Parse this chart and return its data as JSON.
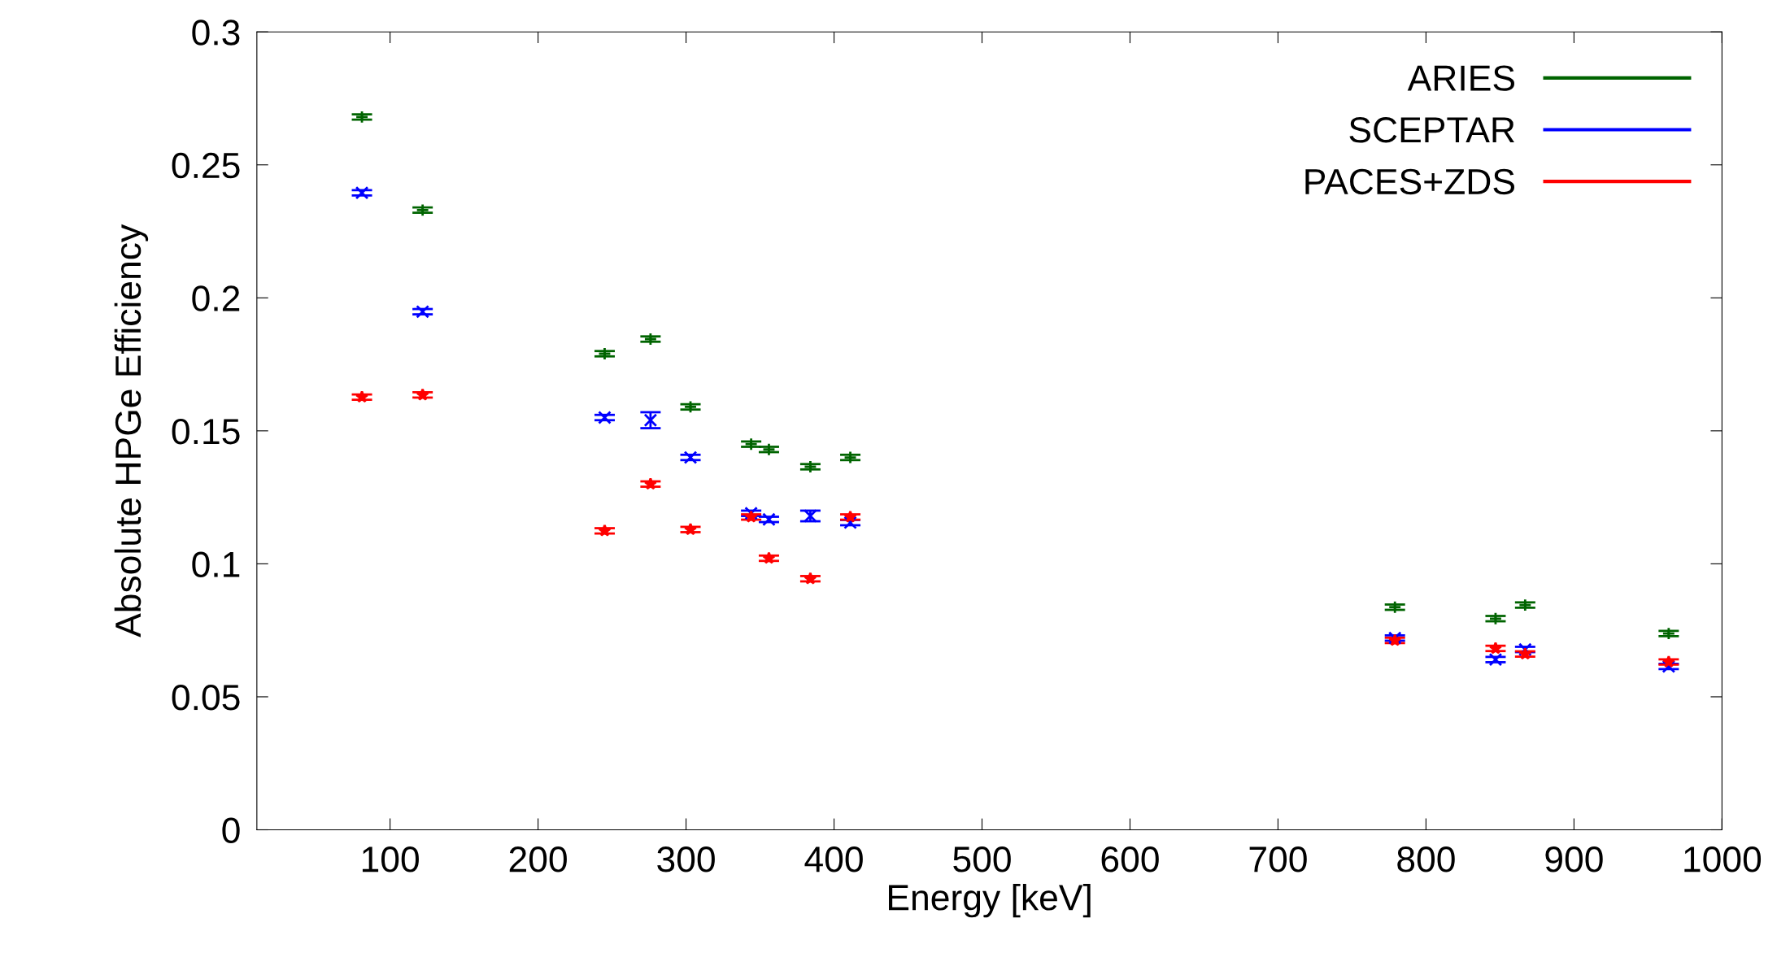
{
  "chart_data": {
    "type": "scatter",
    "xlabel": "Energy [keV]",
    "ylabel": "Absolute HPGe Efficiency",
    "x": [
      81,
      122,
      245,
      276,
      303,
      344,
      356,
      384,
      411,
      779,
      847,
      867,
      964
    ],
    "series": [
      {
        "name": "ARIES",
        "color": "#006400",
        "marker": "plus",
        "values": [
          0.268,
          0.233,
          0.179,
          0.1845,
          0.159,
          0.145,
          0.143,
          0.1365,
          0.14,
          0.0837,
          0.0794,
          0.0845,
          0.0738
        ],
        "errors": [
          0.001,
          0.001,
          0.001,
          0.001,
          0.001,
          0.001,
          0.001,
          0.001,
          0.001,
          0.001,
          0.001,
          0.001,
          0.001
        ]
      },
      {
        "name": "SCEPTAR",
        "color": "#0000ff",
        "marker": "cross",
        "values": [
          0.2395,
          0.1948,
          0.155,
          0.154,
          0.14,
          0.119,
          0.1167,
          0.118,
          0.1155,
          0.0721,
          0.064,
          0.0678,
          0.0614
        ],
        "errors": [
          0.001,
          0.001,
          0.001,
          0.003,
          0.001,
          0.001,
          0.001,
          0.002,
          0.001,
          0.001,
          0.001,
          0.001,
          0.001
        ]
      },
      {
        "name": "PACES+ZDS",
        "color": "#ff0000",
        "marker": "star",
        "values": [
          0.1627,
          0.1635,
          0.1124,
          0.13,
          0.1129,
          0.1176,
          0.1021,
          0.0944,
          0.1176,
          0.0712,
          0.0682,
          0.0661,
          0.0631
        ],
        "errors": [
          0.001,
          0.001,
          0.001,
          0.001,
          0.001,
          0.001,
          0.001,
          0.001,
          0.001,
          0.001,
          0.001,
          0.001,
          0.001
        ]
      }
    ],
    "xlim": [
      10,
      1000
    ],
    "xticks": [
      100,
      200,
      300,
      400,
      500,
      600,
      700,
      800,
      900,
      1000
    ],
    "ylim": [
      0,
      0.3
    ],
    "yticks": [
      0,
      0.05,
      0.1,
      0.15,
      0.2,
      0.25,
      0.3
    ],
    "legend": "top right",
    "grid": false
  }
}
